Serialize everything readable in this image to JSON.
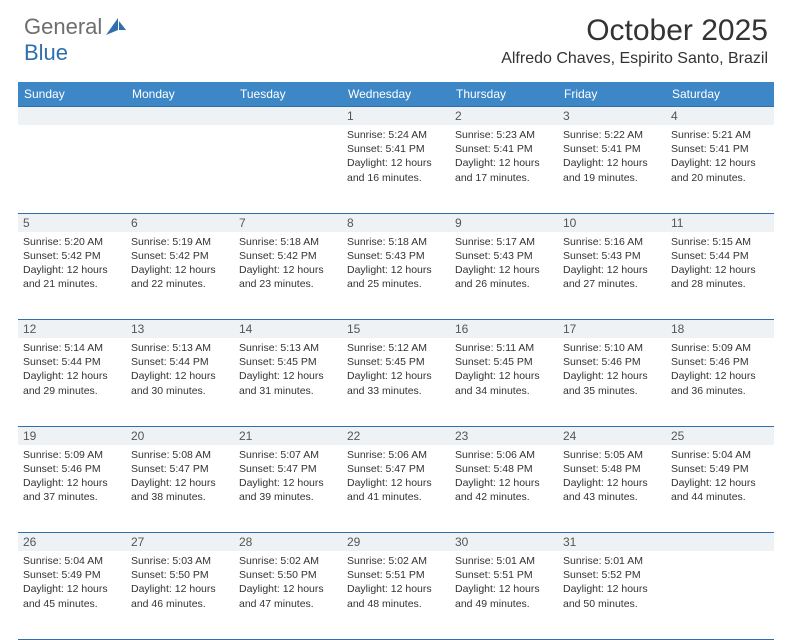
{
  "brand": {
    "part1": "General",
    "part2": "Blue"
  },
  "header": {
    "month_title": "October 2025",
    "location": "Alfredo Chaves, Espirito Santo, Brazil"
  },
  "colors": {
    "header_bg": "#3d87c7",
    "border": "#2f6fad",
    "daynum_bg": "#eff2f5",
    "page_bg": "#ffffff",
    "text": "#333333"
  },
  "daysOfWeek": [
    "Sunday",
    "Monday",
    "Tuesday",
    "Wednesday",
    "Thursday",
    "Friday",
    "Saturday"
  ],
  "weeks": [
    [
      {
        "day": "",
        "sunrise": "",
        "sunset": "",
        "daylight1": "",
        "daylight2": ""
      },
      {
        "day": "",
        "sunrise": "",
        "sunset": "",
        "daylight1": "",
        "daylight2": ""
      },
      {
        "day": "",
        "sunrise": "",
        "sunset": "",
        "daylight1": "",
        "daylight2": ""
      },
      {
        "day": "1",
        "sunrise": "Sunrise: 5:24 AM",
        "sunset": "Sunset: 5:41 PM",
        "daylight1": "Daylight: 12 hours",
        "daylight2": "and 16 minutes."
      },
      {
        "day": "2",
        "sunrise": "Sunrise: 5:23 AM",
        "sunset": "Sunset: 5:41 PM",
        "daylight1": "Daylight: 12 hours",
        "daylight2": "and 17 minutes."
      },
      {
        "day": "3",
        "sunrise": "Sunrise: 5:22 AM",
        "sunset": "Sunset: 5:41 PM",
        "daylight1": "Daylight: 12 hours",
        "daylight2": "and 19 minutes."
      },
      {
        "day": "4",
        "sunrise": "Sunrise: 5:21 AM",
        "sunset": "Sunset: 5:41 PM",
        "daylight1": "Daylight: 12 hours",
        "daylight2": "and 20 minutes."
      }
    ],
    [
      {
        "day": "5",
        "sunrise": "Sunrise: 5:20 AM",
        "sunset": "Sunset: 5:42 PM",
        "daylight1": "Daylight: 12 hours",
        "daylight2": "and 21 minutes."
      },
      {
        "day": "6",
        "sunrise": "Sunrise: 5:19 AM",
        "sunset": "Sunset: 5:42 PM",
        "daylight1": "Daylight: 12 hours",
        "daylight2": "and 22 minutes."
      },
      {
        "day": "7",
        "sunrise": "Sunrise: 5:18 AM",
        "sunset": "Sunset: 5:42 PM",
        "daylight1": "Daylight: 12 hours",
        "daylight2": "and 23 minutes."
      },
      {
        "day": "8",
        "sunrise": "Sunrise: 5:18 AM",
        "sunset": "Sunset: 5:43 PM",
        "daylight1": "Daylight: 12 hours",
        "daylight2": "and 25 minutes."
      },
      {
        "day": "9",
        "sunrise": "Sunrise: 5:17 AM",
        "sunset": "Sunset: 5:43 PM",
        "daylight1": "Daylight: 12 hours",
        "daylight2": "and 26 minutes."
      },
      {
        "day": "10",
        "sunrise": "Sunrise: 5:16 AM",
        "sunset": "Sunset: 5:43 PM",
        "daylight1": "Daylight: 12 hours",
        "daylight2": "and 27 minutes."
      },
      {
        "day": "11",
        "sunrise": "Sunrise: 5:15 AM",
        "sunset": "Sunset: 5:44 PM",
        "daylight1": "Daylight: 12 hours",
        "daylight2": "and 28 minutes."
      }
    ],
    [
      {
        "day": "12",
        "sunrise": "Sunrise: 5:14 AM",
        "sunset": "Sunset: 5:44 PM",
        "daylight1": "Daylight: 12 hours",
        "daylight2": "and 29 minutes."
      },
      {
        "day": "13",
        "sunrise": "Sunrise: 5:13 AM",
        "sunset": "Sunset: 5:44 PM",
        "daylight1": "Daylight: 12 hours",
        "daylight2": "and 30 minutes."
      },
      {
        "day": "14",
        "sunrise": "Sunrise: 5:13 AM",
        "sunset": "Sunset: 5:45 PM",
        "daylight1": "Daylight: 12 hours",
        "daylight2": "and 31 minutes."
      },
      {
        "day": "15",
        "sunrise": "Sunrise: 5:12 AM",
        "sunset": "Sunset: 5:45 PM",
        "daylight1": "Daylight: 12 hours",
        "daylight2": "and 33 minutes."
      },
      {
        "day": "16",
        "sunrise": "Sunrise: 5:11 AM",
        "sunset": "Sunset: 5:45 PM",
        "daylight1": "Daylight: 12 hours",
        "daylight2": "and 34 minutes."
      },
      {
        "day": "17",
        "sunrise": "Sunrise: 5:10 AM",
        "sunset": "Sunset: 5:46 PM",
        "daylight1": "Daylight: 12 hours",
        "daylight2": "and 35 minutes."
      },
      {
        "day": "18",
        "sunrise": "Sunrise: 5:09 AM",
        "sunset": "Sunset: 5:46 PM",
        "daylight1": "Daylight: 12 hours",
        "daylight2": "and 36 minutes."
      }
    ],
    [
      {
        "day": "19",
        "sunrise": "Sunrise: 5:09 AM",
        "sunset": "Sunset: 5:46 PM",
        "daylight1": "Daylight: 12 hours",
        "daylight2": "and 37 minutes."
      },
      {
        "day": "20",
        "sunrise": "Sunrise: 5:08 AM",
        "sunset": "Sunset: 5:47 PM",
        "daylight1": "Daylight: 12 hours",
        "daylight2": "and 38 minutes."
      },
      {
        "day": "21",
        "sunrise": "Sunrise: 5:07 AM",
        "sunset": "Sunset: 5:47 PM",
        "daylight1": "Daylight: 12 hours",
        "daylight2": "and 39 minutes."
      },
      {
        "day": "22",
        "sunrise": "Sunrise: 5:06 AM",
        "sunset": "Sunset: 5:47 PM",
        "daylight1": "Daylight: 12 hours",
        "daylight2": "and 41 minutes."
      },
      {
        "day": "23",
        "sunrise": "Sunrise: 5:06 AM",
        "sunset": "Sunset: 5:48 PM",
        "daylight1": "Daylight: 12 hours",
        "daylight2": "and 42 minutes."
      },
      {
        "day": "24",
        "sunrise": "Sunrise: 5:05 AM",
        "sunset": "Sunset: 5:48 PM",
        "daylight1": "Daylight: 12 hours",
        "daylight2": "and 43 minutes."
      },
      {
        "day": "25",
        "sunrise": "Sunrise: 5:04 AM",
        "sunset": "Sunset: 5:49 PM",
        "daylight1": "Daylight: 12 hours",
        "daylight2": "and 44 minutes."
      }
    ],
    [
      {
        "day": "26",
        "sunrise": "Sunrise: 5:04 AM",
        "sunset": "Sunset: 5:49 PM",
        "daylight1": "Daylight: 12 hours",
        "daylight2": "and 45 minutes."
      },
      {
        "day": "27",
        "sunrise": "Sunrise: 5:03 AM",
        "sunset": "Sunset: 5:50 PM",
        "daylight1": "Daylight: 12 hours",
        "daylight2": "and 46 minutes."
      },
      {
        "day": "28",
        "sunrise": "Sunrise: 5:02 AM",
        "sunset": "Sunset: 5:50 PM",
        "daylight1": "Daylight: 12 hours",
        "daylight2": "and 47 minutes."
      },
      {
        "day": "29",
        "sunrise": "Sunrise: 5:02 AM",
        "sunset": "Sunset: 5:51 PM",
        "daylight1": "Daylight: 12 hours",
        "daylight2": "and 48 minutes."
      },
      {
        "day": "30",
        "sunrise": "Sunrise: 5:01 AM",
        "sunset": "Sunset: 5:51 PM",
        "daylight1": "Daylight: 12 hours",
        "daylight2": "and 49 minutes."
      },
      {
        "day": "31",
        "sunrise": "Sunrise: 5:01 AM",
        "sunset": "Sunset: 5:52 PM",
        "daylight1": "Daylight: 12 hours",
        "daylight2": "and 50 minutes."
      },
      {
        "day": "",
        "sunrise": "",
        "sunset": "",
        "daylight1": "",
        "daylight2": ""
      }
    ]
  ]
}
